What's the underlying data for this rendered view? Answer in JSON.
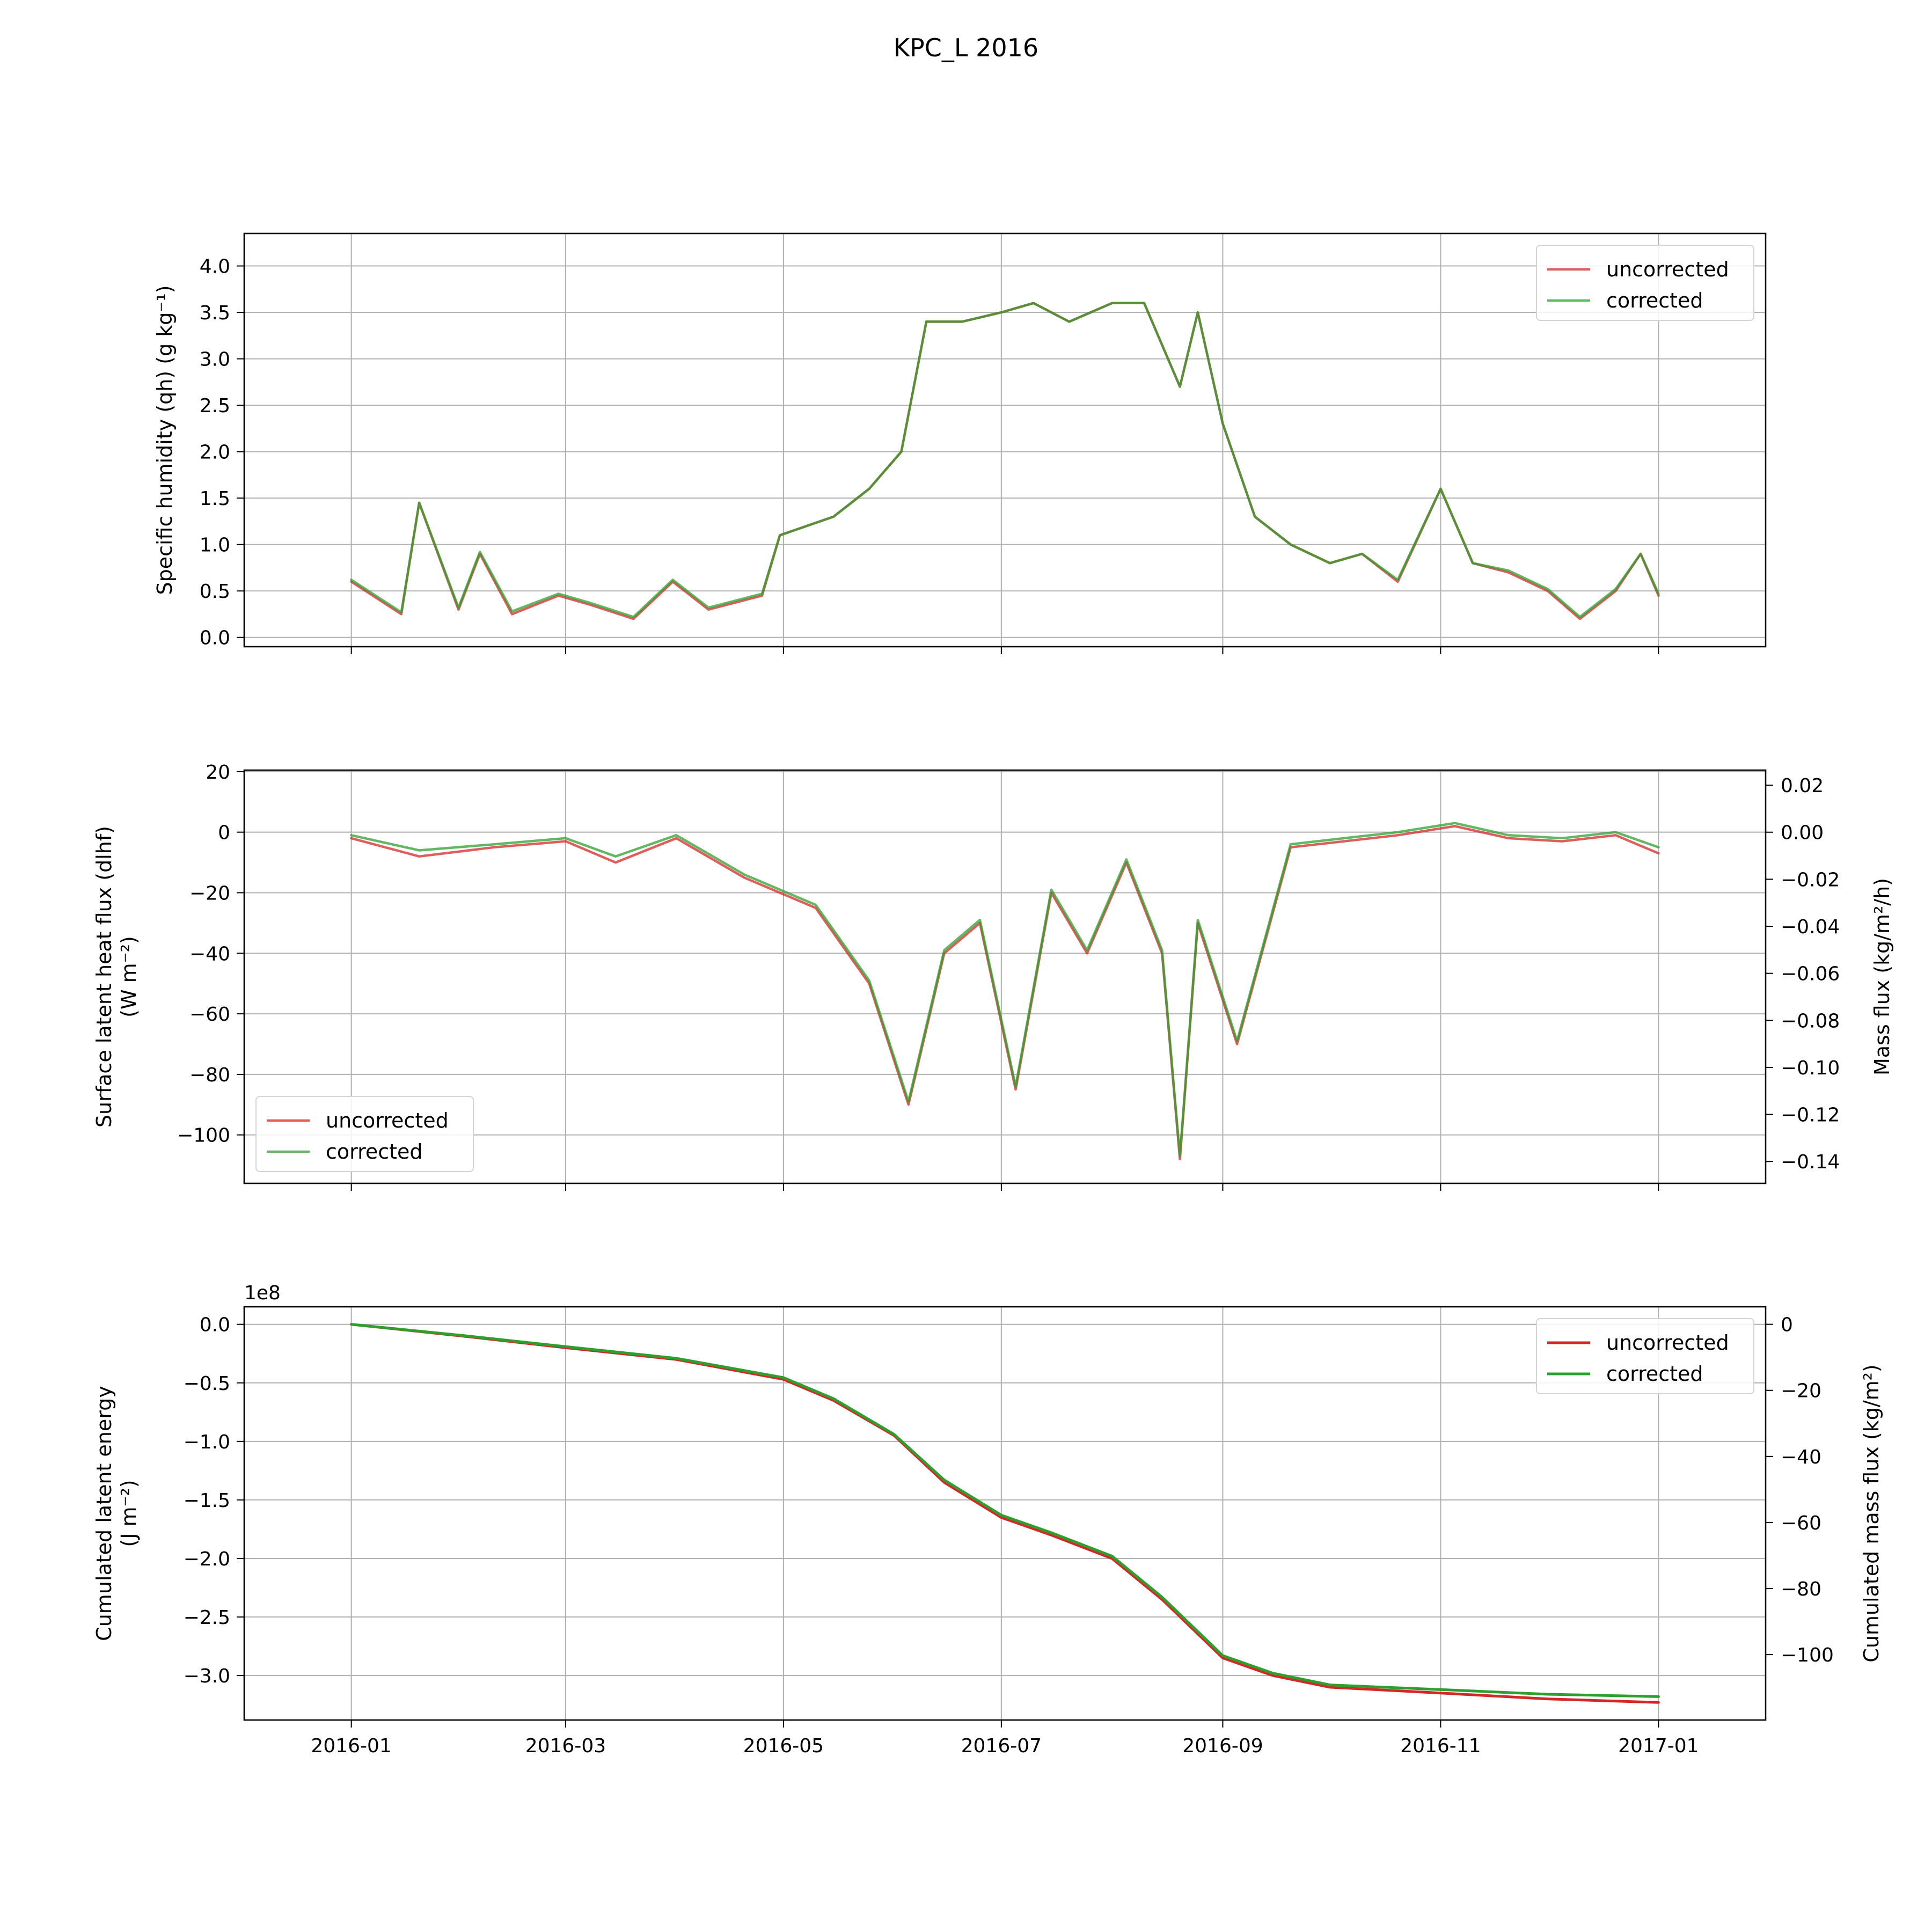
{
  "title": "KPC_L 2016",
  "legend_labels": [
    "uncorrected",
    "corrected"
  ],
  "colors": {
    "uncorrected": "#d62728",
    "corrected": "#2ca02c",
    "overlap": "#5a8a2e"
  },
  "x_ticks": [
    "2016-01",
    "2016-03",
    "2016-05",
    "2016-07",
    "2016-09",
    "2016-11",
    "2017-01"
  ],
  "chart_data": [
    {
      "type": "line",
      "panel": "specific-humidity",
      "ylabel": "Specific humidity (qh) (g kg⁻¹)",
      "xlim": [
        "2016-01-01",
        "2017-01-01"
      ],
      "ylim": [
        -0.1,
        4.35
      ],
      "y_ticks": [
        "0.0",
        "0.5",
        "1.0",
        "1.5",
        "2.0",
        "2.5",
        "3.0",
        "3.5",
        "4.0"
      ],
      "grid": true,
      "legend": "upper-right",
      "series": [
        {
          "name": "uncorrected",
          "x": [
            "2016-01-01",
            "2016-01-15",
            "2016-01-20",
            "2016-01-31",
            "2016-02-06",
            "2016-02-15",
            "2016-02-28",
            "2016-03-08",
            "2016-03-20",
            "2016-03-31",
            "2016-04-10",
            "2016-04-25",
            "2016-04-30",
            "2016-05-15",
            "2016-05-25",
            "2016-06-03",
            "2016-06-10",
            "2016-06-20",
            "2016-07-01",
            "2016-07-10",
            "2016-07-20",
            "2016-08-01",
            "2016-08-10",
            "2016-08-20",
            "2016-08-25",
            "2016-09-01",
            "2016-09-10",
            "2016-09-20",
            "2016-10-01",
            "2016-10-10",
            "2016-10-20",
            "2016-11-01",
            "2016-11-10",
            "2016-11-20",
            "2016-12-01",
            "2016-12-10",
            "2016-12-20",
            "2016-12-27",
            "2017-01-01"
          ],
          "values": [
            0.6,
            0.25,
            1.45,
            0.3,
            0.9,
            0.25,
            0.45,
            0.35,
            0.2,
            0.6,
            0.3,
            0.45,
            1.1,
            1.3,
            1.6,
            2.0,
            3.4,
            3.4,
            3.5,
            3.6,
            3.4,
            3.6,
            3.6,
            2.7,
            3.5,
            2.3,
            1.3,
            1.0,
            0.8,
            0.9,
            0.6,
            1.6,
            0.8,
            0.7,
            0.5,
            0.2,
            0.5,
            0.9,
            0.45
          ]
        },
        {
          "name": "corrected",
          "x": [
            "2016-01-01",
            "2016-01-15",
            "2016-01-20",
            "2016-01-31",
            "2016-02-06",
            "2016-02-15",
            "2016-02-28",
            "2016-03-08",
            "2016-03-20",
            "2016-03-31",
            "2016-04-10",
            "2016-04-25",
            "2016-04-30",
            "2016-05-15",
            "2016-05-25",
            "2016-06-03",
            "2016-06-10",
            "2016-06-20",
            "2016-07-01",
            "2016-07-10",
            "2016-07-20",
            "2016-08-01",
            "2016-08-10",
            "2016-08-20",
            "2016-08-25",
            "2016-09-01",
            "2016-09-10",
            "2016-09-20",
            "2016-10-01",
            "2016-10-10",
            "2016-10-20",
            "2016-11-01",
            "2016-11-10",
            "2016-11-20",
            "2016-12-01",
            "2016-12-10",
            "2016-12-20",
            "2016-12-27",
            "2017-01-01"
          ],
          "values": [
            0.62,
            0.27,
            1.45,
            0.32,
            0.92,
            0.28,
            0.47,
            0.37,
            0.22,
            0.62,
            0.32,
            0.47,
            1.1,
            1.3,
            1.6,
            2.0,
            3.4,
            3.4,
            3.5,
            3.6,
            3.4,
            3.6,
            3.6,
            2.7,
            3.5,
            2.3,
            1.3,
            1.0,
            0.8,
            0.9,
            0.62,
            1.6,
            0.8,
            0.72,
            0.52,
            0.22,
            0.52,
            0.9,
            0.47
          ]
        }
      ]
    },
    {
      "type": "line",
      "panel": "latent-heat-flux",
      "ylabel": "Surface latent heat flux (dlhf) (W m⁻²)",
      "y2label": "Mass flux (kg/m²/h)",
      "xlim": [
        "2016-01-01",
        "2017-01-01"
      ],
      "ylim": [
        -116,
        20.5
      ],
      "y2lim": [
        -0.1493,
        0.0264
      ],
      "y_ticks": [
        "20",
        "0",
        "−20",
        "−40",
        "−60",
        "−80",
        "−100"
      ],
      "y2_ticks": [
        "0.02",
        "0.00",
        "−0.02",
        "−0.04",
        "−0.06",
        "−0.08",
        "−0.10",
        "−0.12",
        "−0.14"
      ],
      "grid": true,
      "legend": "lower-left",
      "series": [
        {
          "name": "uncorrected",
          "x": [
            "2016-01-01",
            "2016-01-20",
            "2016-02-10",
            "2016-03-01",
            "2016-03-15",
            "2016-04-01",
            "2016-04-20",
            "2016-05-10",
            "2016-05-25",
            "2016-06-05",
            "2016-06-15",
            "2016-06-25",
            "2016-07-05",
            "2016-07-15",
            "2016-07-25",
            "2016-08-05",
            "2016-08-15",
            "2016-08-20",
            "2016-08-25",
            "2016-09-05",
            "2016-09-20",
            "2016-10-05",
            "2016-10-20",
            "2016-11-05",
            "2016-11-20",
            "2016-12-05",
            "2016-12-20",
            "2017-01-01"
          ],
          "values": [
            -2,
            -8,
            -5,
            -3,
            -10,
            -2,
            -15,
            -25,
            -50,
            -90,
            -40,
            -30,
            -85,
            -20,
            -40,
            -10,
            -40,
            -108,
            -30,
            -70,
            -5,
            -3,
            -1,
            2,
            -2,
            -3,
            -1,
            -7
          ]
        },
        {
          "name": "corrected",
          "x": [
            "2016-01-01",
            "2016-01-20",
            "2016-02-10",
            "2016-03-01",
            "2016-03-15",
            "2016-04-01",
            "2016-04-20",
            "2016-05-10",
            "2016-05-25",
            "2016-06-05",
            "2016-06-15",
            "2016-06-25",
            "2016-07-05",
            "2016-07-15",
            "2016-07-25",
            "2016-08-05",
            "2016-08-15",
            "2016-08-20",
            "2016-08-25",
            "2016-09-05",
            "2016-09-20",
            "2016-10-05",
            "2016-10-20",
            "2016-11-05",
            "2016-11-20",
            "2016-12-05",
            "2016-12-20",
            "2017-01-01"
          ],
          "values": [
            -1,
            -6,
            -4,
            -2,
            -8,
            -1,
            -14,
            -24,
            -49,
            -89,
            -39,
            -29,
            -84,
            -19,
            -39,
            -9,
            -39,
            -107,
            -29,
            -69,
            -4,
            -2,
            0,
            3,
            -1,
            -2,
            0,
            -5
          ]
        }
      ]
    },
    {
      "type": "line",
      "panel": "cumulated-latent-energy",
      "ylabel": "Cumulated latent energy (J m⁻²)",
      "y2label": "Cumulated mass flux (kg/m²)",
      "scale_label": "1e8",
      "xlim": [
        "2016-01-01",
        "2017-01-01"
      ],
      "ylim": [
        -3.38,
        0.15
      ],
      "y2lim": [
        -119.8,
        5.3
      ],
      "y_ticks": [
        "0.0",
        "−0.5",
        "−1.0",
        "−1.5",
        "−2.0",
        "−2.5",
        "−3.0"
      ],
      "y2_ticks": [
        "0",
        "−20",
        "−40",
        "−60",
        "−80",
        "−100"
      ],
      "grid": true,
      "legend": "upper-right",
      "series": [
        {
          "name": "uncorrected",
          "x": [
            "2016-01-01",
            "2016-02-01",
            "2016-03-01",
            "2016-04-01",
            "2016-05-01",
            "2016-05-15",
            "2016-06-01",
            "2016-06-15",
            "2016-07-01",
            "2016-07-15",
            "2016-08-01",
            "2016-08-15",
            "2016-09-01",
            "2016-09-15",
            "2016-10-01",
            "2016-11-01",
            "2016-12-01",
            "2017-01-01"
          ],
          "values": [
            0.0,
            -0.1,
            -0.2,
            -0.3,
            -0.47,
            -0.65,
            -0.95,
            -1.35,
            -1.65,
            -1.8,
            -2.0,
            -2.35,
            -2.85,
            -3.0,
            -3.1,
            -3.15,
            -3.2,
            -3.23
          ]
        },
        {
          "name": "corrected",
          "x": [
            "2016-01-01",
            "2016-02-01",
            "2016-03-01",
            "2016-04-01",
            "2016-05-01",
            "2016-05-15",
            "2016-06-01",
            "2016-06-15",
            "2016-07-01",
            "2016-07-15",
            "2016-08-01",
            "2016-08-15",
            "2016-09-01",
            "2016-09-15",
            "2016-10-01",
            "2016-11-01",
            "2016-12-01",
            "2017-01-01"
          ],
          "values": [
            0.0,
            -0.095,
            -0.19,
            -0.29,
            -0.455,
            -0.635,
            -0.94,
            -1.33,
            -1.63,
            -1.78,
            -1.98,
            -2.33,
            -2.83,
            -2.98,
            -3.08,
            -3.12,
            -3.16,
            -3.18
          ]
        }
      ]
    }
  ]
}
